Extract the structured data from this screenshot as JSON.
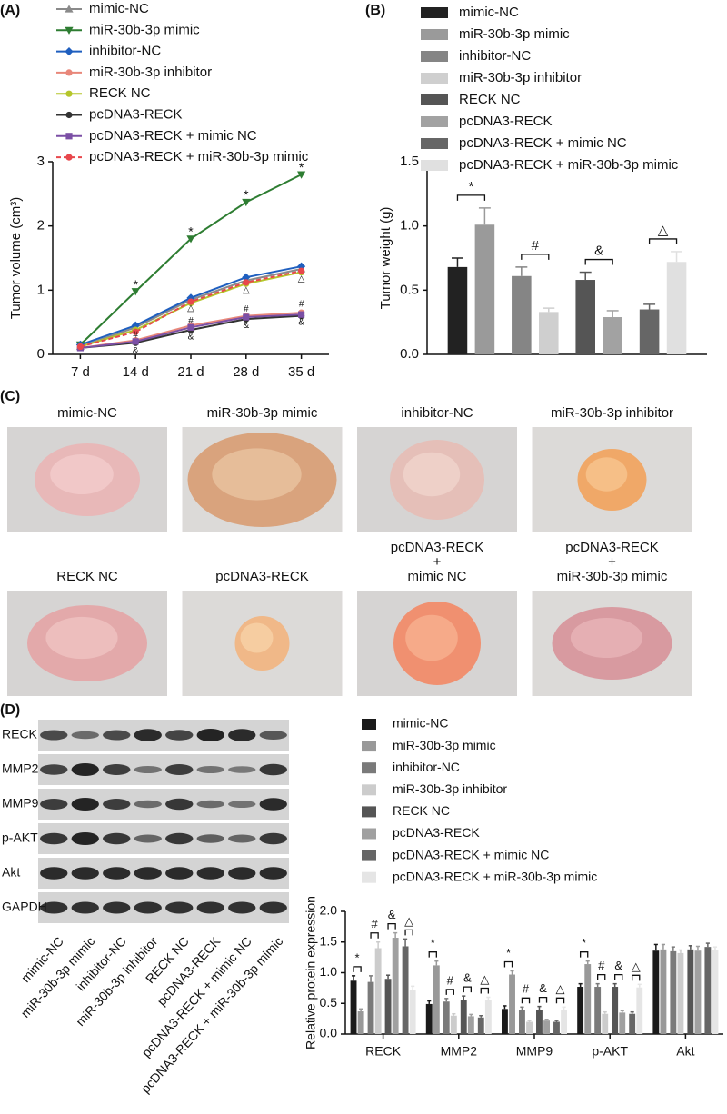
{
  "chart_data": [
    {
      "type": "line",
      "panel": "(A)",
      "y_label": "Tumor volume (cm³)",
      "categories": [
        "7 d",
        "14 d",
        "21 d",
        "28 d",
        "35 d"
      ],
      "ylim": [
        0,
        3
      ],
      "yticks": [
        0,
        1,
        2,
        3
      ],
      "series": [
        {
          "name": "mimic-NC",
          "color": "#8a8a8a",
          "marker": "triangle",
          "values": [
            0.12,
            0.42,
            0.85,
            1.15,
            1.33
          ]
        },
        {
          "name": "miR-30b-3p mimic",
          "color": "#2e7d32",
          "marker": "triangle-down",
          "values": [
            0.15,
            0.98,
            1.8,
            2.37,
            2.8
          ]
        },
        {
          "name": "inhibitor-NC",
          "color": "#1f5fbf",
          "marker": "diamond",
          "values": [
            0.15,
            0.45,
            0.88,
            1.2,
            1.37
          ]
        },
        {
          "name": "miR-30b-3p inhibitor",
          "color": "#e8877a",
          "marker": "circle",
          "values": [
            0.1,
            0.22,
            0.45,
            0.6,
            0.65
          ]
        },
        {
          "name": "RECK NC",
          "color": "#b5c62a",
          "marker": "circle",
          "values": [
            0.12,
            0.38,
            0.8,
            1.1,
            1.28
          ]
        },
        {
          "name": "pcDNA3-RECK",
          "color": "#333333",
          "marker": "circle",
          "values": [
            0.1,
            0.18,
            0.38,
            0.55,
            0.6
          ]
        },
        {
          "name": "pcDNA3-RECK + mimic NC",
          "color": "#7b4fa5",
          "marker": "square",
          "values": [
            0.1,
            0.2,
            0.42,
            0.58,
            0.62
          ]
        },
        {
          "name": "pcDNA3-RECK + miR-30b-3p mimic",
          "color": "#e8474c",
          "marker": "circle",
          "dashed": true,
          "values": [
            0.12,
            0.35,
            0.82,
            1.12,
            1.3
          ]
        }
      ],
      "annotations": [
        {
          "text": "*",
          "x": "14 d",
          "y": 1.07
        },
        {
          "text": "*",
          "x": "21 d",
          "y": 1.9
        },
        {
          "text": "*",
          "x": "28 d",
          "y": 2.47
        },
        {
          "text": "*",
          "x": "35 d",
          "y": 2.9
        },
        {
          "text": "△",
          "x": "21 d",
          "y": 0.72
        },
        {
          "text": "△",
          "x": "28 d",
          "y": 1.0
        },
        {
          "text": "△",
          "x": "35 d",
          "y": 1.18
        },
        {
          "text": "#",
          "x": "14 d",
          "y": 0.3
        },
        {
          "text": "#",
          "x": "21 d",
          "y": 0.52
        },
        {
          "text": "#",
          "x": "28 d",
          "y": 0.7
        },
        {
          "text": "#",
          "x": "35 d",
          "y": 0.78
        },
        {
          "text": "&",
          "x": "14 d",
          "y": 0.05
        },
        {
          "text": "&",
          "x": "21 d",
          "y": 0.27
        },
        {
          "text": "&",
          "x": "28 d",
          "y": 0.45
        },
        {
          "text": "&",
          "x": "35 d",
          "y": 0.5
        }
      ]
    },
    {
      "type": "bar",
      "panel": "(B)",
      "y_label": "Tumor weight (g)",
      "ylim": [
        0,
        1.5
      ],
      "yticks": [
        {
          "value": 0,
          "label": "0.0"
        },
        {
          "value": 0.5,
          "label": "0.5"
        },
        {
          "value": 1,
          "label": "1.0"
        },
        {
          "value": 1.5,
          "label": "1.5"
        }
      ],
      "series": [
        {
          "name": "mimic-NC",
          "color": "#222222",
          "values": [
            0.68
          ],
          "errors": [
            0.07
          ]
        },
        {
          "name": "miR-30b-3p mimic",
          "color": "#9a9a9a",
          "values": [
            1.01
          ],
          "errors": [
            0.13
          ]
        },
        {
          "name": "inhibitor-NC",
          "color": "#858585",
          "values": [
            0.61
          ],
          "errors": [
            0.07
          ]
        },
        {
          "name": "miR-30b-3p inhibitor",
          "color": "#cfcfcf",
          "values": [
            0.33
          ],
          "errors": [
            0.03
          ]
        },
        {
          "name": "RECK NC",
          "color": "#555555",
          "values": [
            0.58
          ],
          "errors": [
            0.06
          ]
        },
        {
          "name": "pcDNA3-RECK",
          "color": "#a2a2a2",
          "values": [
            0.29
          ],
          "errors": [
            0.05
          ]
        },
        {
          "name": "pcDNA3-RECK + mimic NC",
          "color": "#666666",
          "values": [
            0.35
          ],
          "errors": [
            0.04
          ]
        },
        {
          "name": "pcDNA3-RECK + miR-30b-3p mimic",
          "color": "#e0e0e0",
          "values": [
            0.72
          ],
          "errors": [
            0.08
          ]
        }
      ],
      "significance": [
        {
          "marks": [
            "*",
            "#",
            "&",
            "△"
          ]
        }
      ]
    },
    {
      "type": "bar",
      "panel": "(D)",
      "y_label": "Relative protein expression",
      "categories": [
        "RECK",
        "MMP2",
        "MMP9",
        "p-AKT",
        "Akt"
      ],
      "ylim": [
        0,
        2
      ],
      "yticks": [
        {
          "value": 0,
          "label": "0.0"
        },
        {
          "value": 0.5,
          "label": "0.5"
        },
        {
          "value": 1,
          "label": "1.0"
        },
        {
          "value": 1.5,
          "label": "1.5"
        },
        {
          "value": 2,
          "label": "2.0"
        }
      ],
      "series": [
        {
          "name": "mimic-NC",
          "color": "#1a1a1a",
          "values": [
            0.87,
            0.49,
            0.41,
            0.77,
            1.36
          ],
          "errors": [
            0.08,
            0.05,
            0.05,
            0.05,
            0.1
          ]
        },
        {
          "name": "miR-30b-3p mimic",
          "color": "#999999",
          "values": [
            0.37,
            1.12,
            0.97,
            1.14,
            1.38
          ],
          "errors": [
            0.04,
            0.07,
            0.06,
            0.05,
            0.08
          ]
        },
        {
          "name": "inhibitor-NC",
          "color": "#7a7a7a",
          "values": [
            0.85,
            0.53,
            0.4,
            0.77,
            1.35
          ],
          "errors": [
            0.1,
            0.05,
            0.04,
            0.05,
            0.07
          ]
        },
        {
          "name": "miR-30b-3p inhibitor",
          "color": "#cccccc",
          "values": [
            1.4,
            0.3,
            0.2,
            0.33,
            1.32
          ],
          "errors": [
            0.1,
            0.03,
            0.02,
            0.03,
            0.05
          ]
        },
        {
          "name": "RECK NC",
          "color": "#555555",
          "values": [
            0.9,
            0.56,
            0.4,
            0.77,
            1.38
          ],
          "errors": [
            0.06,
            0.06,
            0.05,
            0.05,
            0.06
          ]
        },
        {
          "name": "pcDNA3-RECK",
          "color": "#a0a0a0",
          "values": [
            1.57,
            0.29,
            0.22,
            0.35,
            1.36
          ],
          "errors": [
            0.08,
            0.03,
            0.02,
            0.03,
            0.07
          ]
        },
        {
          "name": "pcDNA3-RECK + mimic NC",
          "color": "#666666",
          "values": [
            1.43,
            0.27,
            0.2,
            0.33,
            1.42
          ],
          "errors": [
            0.12,
            0.03,
            0.02,
            0.03,
            0.06
          ]
        },
        {
          "name": "pcDNA3-RECK + miR-30b-3p mimic",
          "color": "#e5e5e5",
          "values": [
            0.72,
            0.55,
            0.4,
            0.76,
            1.37
          ],
          "errors": [
            0.06,
            0.05,
            0.04,
            0.05,
            0.05
          ]
        }
      ],
      "significance": [
        {
          "category": "RECK",
          "marks": [
            "*",
            "#",
            "&",
            "△"
          ]
        },
        {
          "category": "MMP2",
          "marks": [
            "*",
            "#",
            "&",
            "△"
          ]
        },
        {
          "category": "MMP9",
          "marks": [
            "*",
            "#",
            "&",
            "△"
          ]
        },
        {
          "category": "p-AKT",
          "marks": [
            "*",
            "#",
            "&",
            "△"
          ]
        }
      ]
    }
  ],
  "photos": {
    "panel": "(C)",
    "labels": [
      [
        "mimic-NC"
      ],
      [
        "miR-30b-3p mimic"
      ],
      [
        "inhibitor-NC"
      ],
      [
        "miR-30b-3p inhibitor"
      ],
      [
        "RECK NC"
      ],
      [
        "pcDNA3-RECK"
      ],
      [
        "pcDNA3-RECK",
        "+",
        "mimic NC"
      ],
      [
        "pcDNA3-RECK",
        "+",
        "miR-30b-3p mimic"
      ]
    ]
  },
  "blot": {
    "rows": [
      "RECK",
      "MMP2",
      "MMP9",
      "p-AKT",
      "Akt",
      "GAPDH"
    ],
    "lanes": [
      "mimic-NC",
      "miR-30b-3p mimic",
      "inhibitor-NC",
      "miR-30b-3p inhibitor",
      "RECK NC",
      "pcDNA3-RECK",
      "pcDNA3-RECK + mimic NC",
      "pcDNA3-RECK + miR-30b-3p mimic"
    ]
  }
}
